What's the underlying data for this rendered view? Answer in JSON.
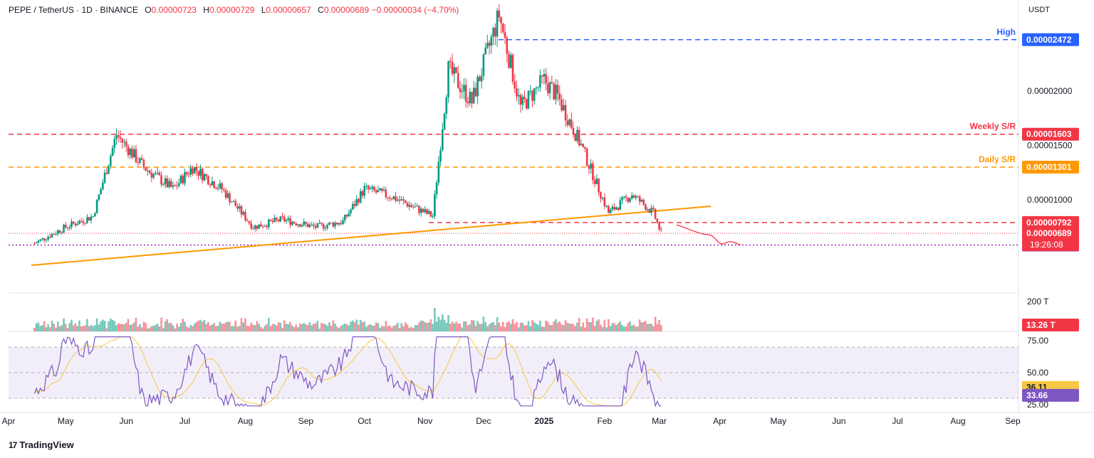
{
  "header": {
    "symbol": "PEPE / TetherUS · 1D · BINANCE",
    "o_label": "O",
    "o": "0.00000723",
    "h_label": "H",
    "h": "0.00000729",
    "l_label": "L",
    "l": "0.00000657",
    "c_label": "C",
    "c": "0.00000689",
    "change": "−0.00000034 (−4.70%)"
  },
  "currency": "USDT",
  "brand": "TradingView",
  "colors": {
    "up": "#089981",
    "down": "#f23645",
    "trendline": "#ff9800",
    "rsi": "#7e57c2",
    "rsi_ma": "#f7c844",
    "high": "#2962ff",
    "weekly": "#f23645",
    "daily": "#ff9800",
    "support": "#9c27b0"
  },
  "chart_data": [
    {
      "type": "candlestick",
      "symbol": "PEPE/USDT",
      "interval": "1D",
      "x_ticks": [
        "Apr",
        "May",
        "Jun",
        "Jul",
        "Aug",
        "Sep",
        "Oct",
        "Nov",
        "Dec",
        "2025",
        "Feb",
        "Mar",
        "Apr",
        "May",
        "Jun",
        "Jul",
        "Aug",
        "Sep"
      ],
      "y_ticks": [
        "0.00002000",
        "0.00001500",
        "0.00001000"
      ],
      "series": [
        {
          "x": [
            "2024-04-15",
            "2024-05-01",
            "2024-05-15",
            "2024-05-27",
            "2024-06-10",
            "2024-06-25",
            "2024-07-05",
            "2024-07-20",
            "2024-08-05",
            "2024-08-20",
            "2024-09-06",
            "2024-09-20",
            "2024-10-01",
            "2024-10-15",
            "2024-10-30",
            "2024-11-05",
            "2024-11-13",
            "2024-11-25",
            "2024-12-09",
            "2024-12-20",
            "2025-01-01",
            "2025-01-08",
            "2025-01-20",
            "2025-02-03",
            "2025-02-15",
            "2025-02-26",
            "2025-03-02"
          ],
          "y": [
            6e-06,
            7.5e-06,
            8.5e-06,
            1.6e-05,
            1.3e-05,
            1.1e-05,
            1.3e-05,
            1.1e-05,
            7.5e-06,
            8.2e-06,
            7.5e-06,
            8e-06,
            1.1e-05,
            1.03e-05,
            9e-06,
            8.5e-06,
            2.2e-05,
            1.9e-05,
            2.7e-05,
            1.85e-05,
            2.1e-05,
            1.95e-05,
            1.5e-05,
            8.8e-06,
            1.05e-05,
            8.8e-06,
            6.9e-06
          ]
        }
      ],
      "levels": [
        {
          "label": "High",
          "value": "0.00002472"
        },
        {
          "label": "Weekly S/R",
          "value": "0.00001603"
        },
        {
          "label": "Daily S/R",
          "value": "0.00001301"
        },
        {
          "label": "",
          "value": "0.00000792"
        },
        {
          "label": "",
          "value": "0.00000585"
        }
      ],
      "last_price": "0.00000689",
      "countdown": "19:26:08"
    },
    {
      "type": "bar",
      "name": "Volume",
      "y_ticks": [
        "200 T"
      ],
      "last_value": "13.26 T"
    },
    {
      "type": "line",
      "name": "RSI",
      "y_ticks": [
        "75.00",
        "50.00",
        "25.00"
      ],
      "ylim": [
        20,
        80
      ],
      "band": [
        30,
        70
      ],
      "rsi_value": "33.66",
      "ma_value": "36.11"
    }
  ]
}
